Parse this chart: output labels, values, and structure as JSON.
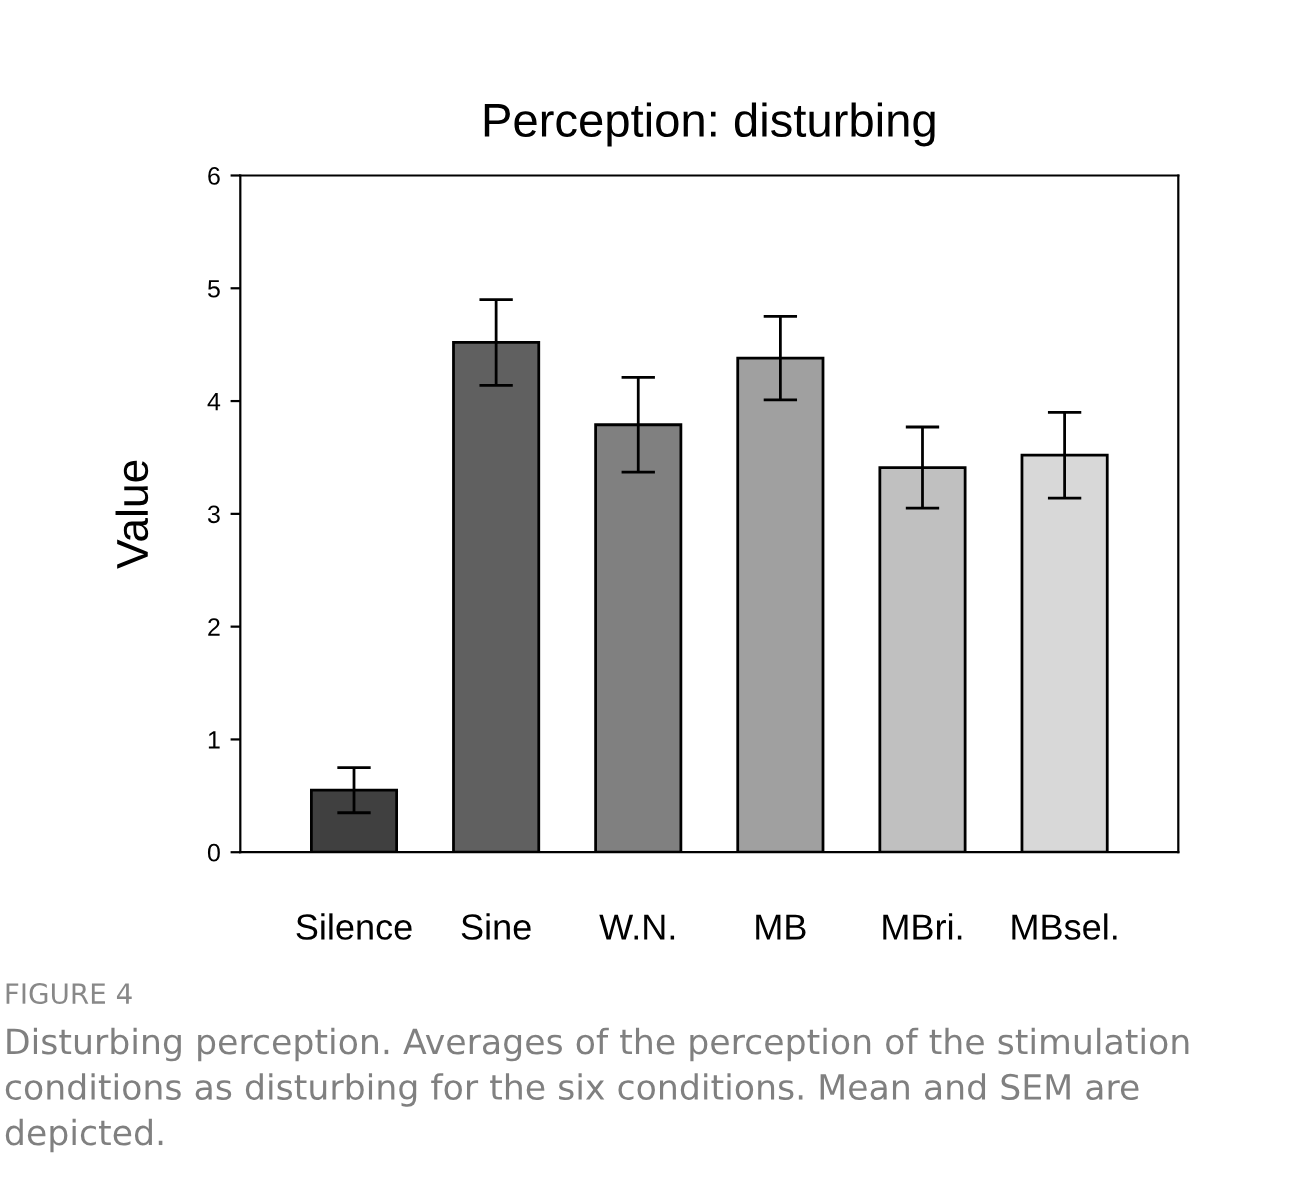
{
  "chart_data": {
    "type": "bar",
    "title": "Perception: disturbing",
    "ylabel": "Value",
    "categories": [
      "Silence",
      "Sine",
      "W.N.",
      "MB",
      "MBri.",
      "MBsel."
    ],
    "values": [
      0.55,
      4.52,
      3.79,
      4.38,
      3.41,
      3.52
    ],
    "errors": [
      0.2,
      0.38,
      0.42,
      0.37,
      0.36,
      0.38
    ],
    "colors": [
      "#404040",
      "#606060",
      "#808080",
      "#a0a0a0",
      "#c0c0c0",
      "#d8d8d8"
    ],
    "ylim": [
      0,
      6
    ],
    "yticks": [
      0,
      1,
      2,
      3,
      4,
      5,
      6
    ],
    "grid": false,
    "legend": false,
    "annotations": [
      "FIGURE 4",
      "Disturbing perception. Averages of the perception of the stimulation conditions as disturbing for the six conditions. Mean and SEM are depicted."
    ]
  }
}
